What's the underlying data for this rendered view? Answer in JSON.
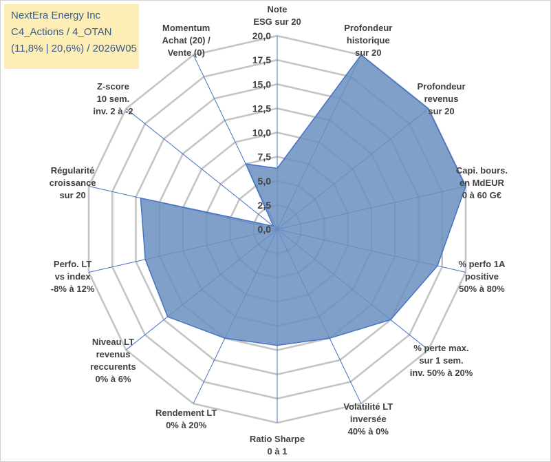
{
  "info": {
    "line1": "NextEra Energy Inc",
    "line2": "C4_Actions / 4_OTAN",
    "line3": "(11,8% | 20,6%) / 2026W05"
  },
  "chart_data": {
    "type": "radar",
    "title": "NextEra Energy Inc",
    "rmin": 0,
    "rmax": 20,
    "grid_step": 2.5,
    "tick_labels": [
      "0,0",
      "2,5",
      "5,0",
      "7,5",
      "10,0",
      "12,5",
      "15,0",
      "17,5",
      "20,0"
    ],
    "categories": [
      [
        "Note",
        "ESG sur 20"
      ],
      [
        "Profondeur",
        "historique",
        "sur 20"
      ],
      [
        "Profondeur",
        "revenus",
        "sur 20"
      ],
      [
        "Capi. bours.",
        "en MdEUR",
        "0 à 60 G€"
      ],
      [
        "% perfo 1A",
        "positive",
        "50% à 80%"
      ],
      [
        "% perte max.",
        "sur 1 sem.",
        "inv. 50% à 20%"
      ],
      [
        "Volatilité LT",
        "inversée",
        "40% à 0%"
      ],
      [
        "Ratio Sharpe",
        "0 à 1"
      ],
      [
        "Rendement LT",
        "0% à 20%"
      ],
      [
        "Niveau LT",
        "revenus",
        "reccurents",
        "0% à 6%"
      ],
      [
        "Perfo. LT",
        "vs index",
        "-8% à 12%"
      ],
      [
        "Régularité",
        "croissance",
        "sur 20"
      ],
      [
        "Z-score",
        "10 sem.",
        "inv. 2 à -2"
      ],
      [
        "Momentum",
        "Achat (20) /",
        "Vente (0)"
      ]
    ],
    "series": [
      {
        "name": "NextEra Energy Inc",
        "color": "#6a8fbf",
        "values": [
          6.3,
          20.0,
          20.0,
          20.0,
          17.0,
          15.0,
          12.5,
          12.0,
          12.5,
          14.5,
          14.0,
          14.5,
          0.5,
          7.5
        ]
      }
    ]
  }
}
